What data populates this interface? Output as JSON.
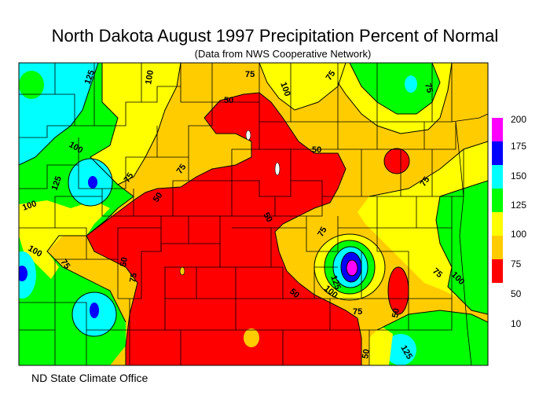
{
  "title": "North Dakota August 1997 Precipitation Percent of Normal",
  "subtitle": "(Data from NWS Cooperative Network)",
  "footer": "ND State Climate Office",
  "legend": {
    "labels": [
      "200",
      "175",
      "150",
      "125",
      "100",
      "75",
      "50",
      "10"
    ],
    "colors": [
      "#ff00ff",
      "#0000ff",
      "#00ffff",
      "#00ff00",
      "#ffff00",
      "#ffcc00",
      "#ff0000"
    ]
  },
  "contour_labels": [
    {
      "text": "125"
    },
    {
      "text": "100"
    },
    {
      "text": "75"
    },
    {
      "text": "100"
    },
    {
      "text": "75"
    },
    {
      "text": "100"
    },
    {
      "text": "125"
    },
    {
      "text": "100"
    },
    {
      "text": "75"
    },
    {
      "text": "50"
    },
    {
      "text": "75"
    },
    {
      "text": "50"
    },
    {
      "text": "50"
    },
    {
      "text": "75"
    },
    {
      "text": "75"
    },
    {
      "text": "100"
    },
    {
      "text": "75"
    },
    {
      "text": "50"
    },
    {
      "text": "75"
    },
    {
      "text": "125"
    },
    {
      "text": "100"
    },
    {
      "text": "75"
    },
    {
      "text": "50"
    },
    {
      "text": "50"
    },
    {
      "text": "75"
    },
    {
      "text": "100"
    },
    {
      "text": "125"
    },
    {
      "text": "50"
    },
    {
      "text": "75"
    },
    {
      "text": "50"
    }
  ]
}
